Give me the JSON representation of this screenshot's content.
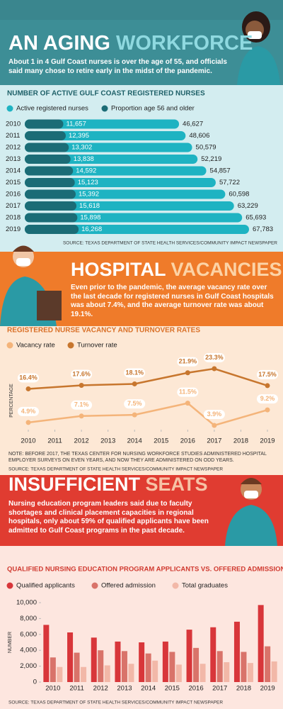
{
  "chart_data": [
    {
      "type": "hbar",
      "heading": [
        "AN AGING",
        "WORKFORCE"
      ],
      "intro": "About 1 in 4 Gulf Coast nurses is over the age of 55, and officials said many chose to retire early in the midst of the pandemic.",
      "title": "NUMBER OF ACTIVE GULF COAST REGISTERED NURSES",
      "categories": [
        "2010",
        "2011",
        "2012",
        "2013",
        "2014",
        "2015",
        "2016",
        "2017",
        "2018",
        "2019"
      ],
      "series": [
        {
          "name": "Active registered nurses",
          "color": "#1eb3c2",
          "values": [
            46627,
            48606,
            50579,
            52219,
            54857,
            57722,
            60598,
            63229,
            65693,
            67783
          ],
          "value_labels": [
            "46,627",
            "48,606",
            "50,579",
            "52,219",
            "54,857",
            "57,722",
            "60,598",
            "63,229",
            "65,693",
            "67,783"
          ]
        },
        {
          "name": "Proportion age 56 and older",
          "color": "#1b6c76",
          "values": [
            11657,
            12395,
            13302,
            13838,
            14592,
            15123,
            15392,
            15618,
            15898,
            16268
          ],
          "value_labels": [
            "11,657",
            "12,395",
            "13,302",
            "13,838",
            "14,592",
            "15,123",
            "15,392",
            "15,618",
            "15,898",
            "16,268"
          ]
        }
      ],
      "source": "SOURCE: TEXAS DEPARTMENT OF STATE HEALTH SERVICES/COMMUNITY IMPACT NEWSPAPER"
    },
    {
      "type": "line",
      "heading": [
        "HOSPITAL",
        "VACANCIES"
      ],
      "intro": "Even prior to the pandemic, the average vacancy rate over the last decade for registered nurses in Gulf Coast hospitals was about 7.4%, and the average turnover rate was about 19.1%.",
      "title": "REGISTERED NURSE VACANCY AND TURNOVER RATES",
      "y_label": "PERCENTAGE",
      "x": [
        2010,
        2012,
        2014,
        2016,
        2017,
        2019
      ],
      "xlim": [
        2010,
        2019
      ],
      "xticks": [
        2010,
        2011,
        2012,
        2013,
        2014,
        2015,
        2016,
        2017,
        2018,
        2019
      ],
      "series": [
        {
          "name": "Vacancy rate",
          "color": "#f4b47a",
          "values": [
            4.9,
            7.1,
            7.5,
            11.5,
            3.9,
            9.2
          ],
          "value_labels": [
            "4.9%",
            "7.1%",
            "7.5%",
            "11.5%",
            "3.9%",
            "9.2%"
          ]
        },
        {
          "name": "Turnover rate",
          "color": "#c7762e",
          "values": [
            16.4,
            17.6,
            18.1,
            21.9,
            23.3,
            17.5
          ],
          "value_labels": [
            "16.4%",
            "17.6%",
            "18.1%",
            "21.9%",
            "23.3%",
            "17.5%"
          ]
        }
      ],
      "note": "NOTE: BEFORE 2017, THE TEXAS CENTER FOR NURSING WORKFORCE STUDIES ADMINISTERED HOSPITAL EMPLOYER SURVEYS ON EVEN YEARS, AND NOW THEY ARE ADMINISTERED ON ODD YEARS.",
      "source": "SOURCE: TEXAS DEPARTMENT OF STATE HEALTH SERVICES/COMMUNITY IMPACT NEWSPAPER"
    },
    {
      "type": "bar",
      "heading": [
        "INSUFFICIENT",
        "SEATS"
      ],
      "intro": "Nursing education program leaders said due to faculty shortages and clinical placement capacities in regional hospitals, only about 59% of qualified applicants have been admitted to Gulf Coast programs in the past decade.",
      "title": "QUALIFIED NURSING EDUCATION PROGRAM APPLICANTS VS. OFFERED ADMISSION",
      "y_label": "NUMBER",
      "categories": [
        "2010",
        "2011",
        "2012",
        "2013",
        "2014",
        "2015",
        "2016",
        "2017",
        "2018",
        "2019"
      ],
      "ylim": [
        0,
        10000
      ],
      "yticks": [
        0,
        {
          "value": 2000,
          "label": "2,000"
        },
        {
          "value": 4000,
          "label": "4,000"
        },
        {
          "value": 6000,
          "label": "6,000"
        },
        {
          "value": 8000,
          "label": "8,000"
        },
        {
          "value": 10000,
          "label": "10,000"
        }
      ],
      "series": [
        {
          "name": "Qualified applicants",
          "color": "#d8363a",
          "values": [
            7200,
            6250,
            5600,
            5100,
            5000,
            5100,
            6600,
            6900,
            7600,
            9700
          ]
        },
        {
          "name": "Offered admission",
          "color": "#d9736a",
          "values": [
            3100,
            3700,
            4000,
            3900,
            3600,
            3800,
            4300,
            3900,
            3800,
            4500
          ]
        },
        {
          "name": "Total graduates",
          "color": "#f2b8a8",
          "values": [
            1900,
            1900,
            2100,
            2300,
            2700,
            2200,
            2300,
            2500,
            2400,
            2600
          ]
        }
      ],
      "source": "SOURCE: TEXAS DEPARTMENT OF STATE HEALTH SERVICES/COMMUNITY IMPACT NEWSPAPER"
    }
  ]
}
